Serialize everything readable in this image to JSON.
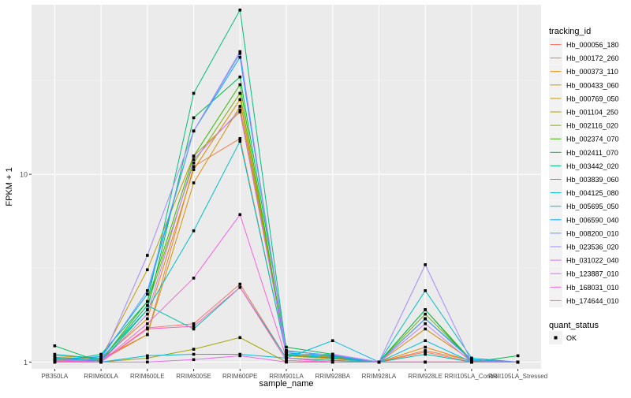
{
  "chart_data": {
    "type": "line",
    "xlabel": "sample_name",
    "ylabel": "FPKM + 1",
    "y_scale": "log10",
    "ylim": [
      0.92,
      80
    ],
    "y_ticks": [
      1,
      10
    ],
    "y_tick_labels": [
      "1 -",
      "10 -"
    ],
    "grid": true,
    "background": "#EBEBEB",
    "categories": [
      "PB350LA",
      "RRIM600LA",
      "RRIM600LE",
      "RRIM600SE",
      "RRIM600PE",
      "RRIM901LA",
      "RRIM928BA",
      "RRIM928LA",
      "RRIM928LE",
      "RRII105LA_Control",
      "RRII105LA_Stressed"
    ],
    "legend_placement": "right",
    "legend_title": "tracking_id",
    "legend_title_2": "quant_status",
    "marker_legend_label": "OK",
    "series": [
      {
        "name": "Hb_000056_180",
        "color": "#F8766D",
        "values": [
          1.02,
          1.0,
          1.52,
          1.6,
          2.6,
          1.05,
          1.02,
          1.0,
          1.13,
          1.0,
          1.0
        ]
      },
      {
        "name": "Hb_000172_260",
        "color": "#EF7F49",
        "values": [
          1.05,
          1.02,
          1.4,
          11.0,
          15.5,
          1.1,
          1.05,
          1.0,
          1.15,
          1.02,
          1.0
        ]
      },
      {
        "name": "Hb_000373_110",
        "color": "#E38900",
        "values": [
          1.04,
          1.03,
          1.7,
          10.6,
          25.0,
          1.08,
          1.04,
          1.0,
          1.2,
          1.01,
          1.0
        ]
      },
      {
        "name": "Hb_000433_060",
        "color": "#D39200",
        "values": [
          1.06,
          1.04,
          1.4,
          9.0,
          23.0,
          1.12,
          1.06,
          1.0,
          1.5,
          1.02,
          1.0
        ]
      },
      {
        "name": "Hb_000769_050",
        "color": "#C09B00",
        "values": [
          1.08,
          1.05,
          3.1,
          12.5,
          21.5,
          1.15,
          1.08,
          1.0,
          1.7,
          1.03,
          1.0
        ]
      },
      {
        "name": "Hb_001104_250",
        "color": "#A3A500",
        "values": [
          1.0,
          1.0,
          1.05,
          1.17,
          1.35,
          1.0,
          1.0,
          1.0,
          1.0,
          1.0,
          1.0
        ]
      },
      {
        "name": "Hb_002116_020",
        "color": "#7CAE00",
        "values": [
          1.03,
          1.02,
          2.0,
          11.5,
          27.0,
          1.1,
          1.05,
          1.0,
          1.8,
          1.02,
          1.0
        ]
      },
      {
        "name": "Hb_002374_070",
        "color": "#39B600",
        "values": [
          1.02,
          1.02,
          2.1,
          12.5,
          30.0,
          1.09,
          1.05,
          1.0,
          1.9,
          1.02,
          1.0
        ]
      },
      {
        "name": "Hb_002411_070",
        "color": "#00BB4E",
        "values": [
          1.22,
          1.0,
          1.9,
          20.0,
          33.0,
          1.2,
          1.1,
          1.0,
          1.9,
          1.0,
          1.08
        ]
      },
      {
        "name": "Hb_003442_020",
        "color": "#00BF7D",
        "values": [
          1.0,
          1.1,
          2.1,
          27.0,
          75.0,
          1.15,
          1.08,
          1.0,
          1.7,
          1.03,
          1.0
        ]
      },
      {
        "name": "Hb_003839_060",
        "color": "#00C1A3",
        "values": [
          1.05,
          1.02,
          2.0,
          1.5,
          2.5,
          1.05,
          1.02,
          1.0,
          1.1,
          1.0,
          1.0
        ]
      },
      {
        "name": "Hb_004125_080",
        "color": "#00BFC4",
        "values": [
          1.1,
          1.04,
          1.9,
          5.0,
          15.0,
          1.1,
          1.05,
          1.0,
          2.4,
          1.05,
          1.0
        ]
      },
      {
        "name": "Hb_005695_050",
        "color": "#00B8E7",
        "values": [
          1.05,
          1.0,
          1.08,
          1.1,
          1.1,
          1.05,
          1.3,
          1.0,
          1.3,
          1.0,
          1.0
        ]
      },
      {
        "name": "Hb_006590_040",
        "color": "#00A9FF",
        "values": [
          1.03,
          1.07,
          2.3,
          17.0,
          42.0,
          1.12,
          1.07,
          1.0,
          1.7,
          1.03,
          1.0
        ]
      },
      {
        "name": "Hb_008200_010",
        "color": "#619CFF",
        "values": [
          1.0,
          1.04,
          2.4,
          17.0,
          44.0,
          1.14,
          1.09,
          1.0,
          1.7,
          1.02,
          1.0
        ]
      },
      {
        "name": "Hb_023536_020",
        "color": "#A58AFF",
        "values": [
          1.04,
          1.0,
          3.7,
          17.0,
          45.0,
          1.1,
          1.1,
          1.0,
          3.3,
          1.0,
          1.0
        ]
      },
      {
        "name": "Hb_031022_040",
        "color": "#C77CFF",
        "values": [
          1.02,
          1.0,
          1.8,
          12.0,
          22.0,
          1.1,
          1.1,
          1.0,
          1.6,
          1.0,
          1.0
        ]
      },
      {
        "name": "Hb_123887_010",
        "color": "#E76BF3",
        "values": [
          1.0,
          1.0,
          1.0,
          1.03,
          1.08,
          1.0,
          1.0,
          1.0,
          1.0,
          1.0,
          1.0
        ]
      },
      {
        "name": "Hb_168031_010",
        "color": "#FA62DB",
        "values": [
          1.02,
          1.0,
          1.6,
          2.8,
          6.1,
          1.05,
          1.0,
          1.0,
          1.0,
          1.0,
          1.0
        ]
      },
      {
        "name": "Hb_174644_010",
        "color": "#FF62BC",
        "values": [
          1.01,
          1.0,
          1.5,
          1.55,
          2.5,
          1.02,
          1.0,
          1.0,
          1.0,
          1.0,
          1.0
        ]
      }
    ]
  }
}
